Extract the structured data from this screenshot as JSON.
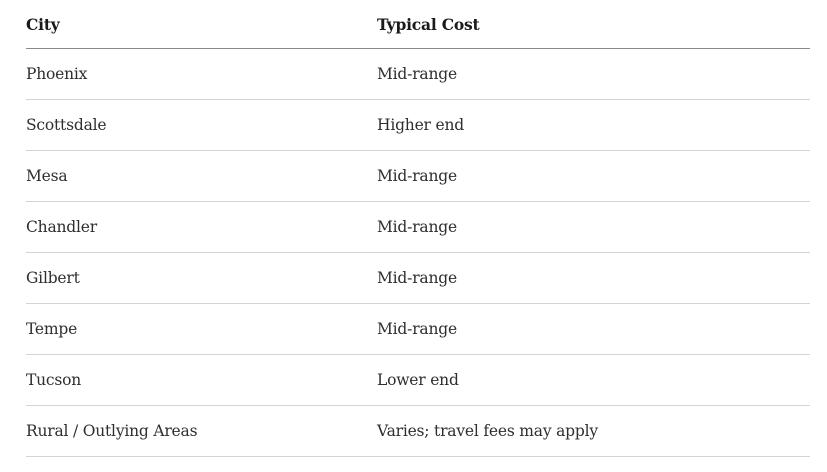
{
  "table": {
    "headers": [
      "City",
      "Typical Cost"
    ],
    "rows": [
      [
        "Phoenix",
        "Mid-range"
      ],
      [
        "Scottsdale",
        "Higher end"
      ],
      [
        "Mesa",
        "Mid-range"
      ],
      [
        "Chandler",
        "Mid-range"
      ],
      [
        "Gilbert",
        "Mid-range"
      ],
      [
        "Tempe",
        "Mid-range"
      ],
      [
        "Tucson",
        "Lower end"
      ],
      [
        "Rural / Outlying Areas",
        "Varies; travel fees may apply"
      ]
    ]
  }
}
